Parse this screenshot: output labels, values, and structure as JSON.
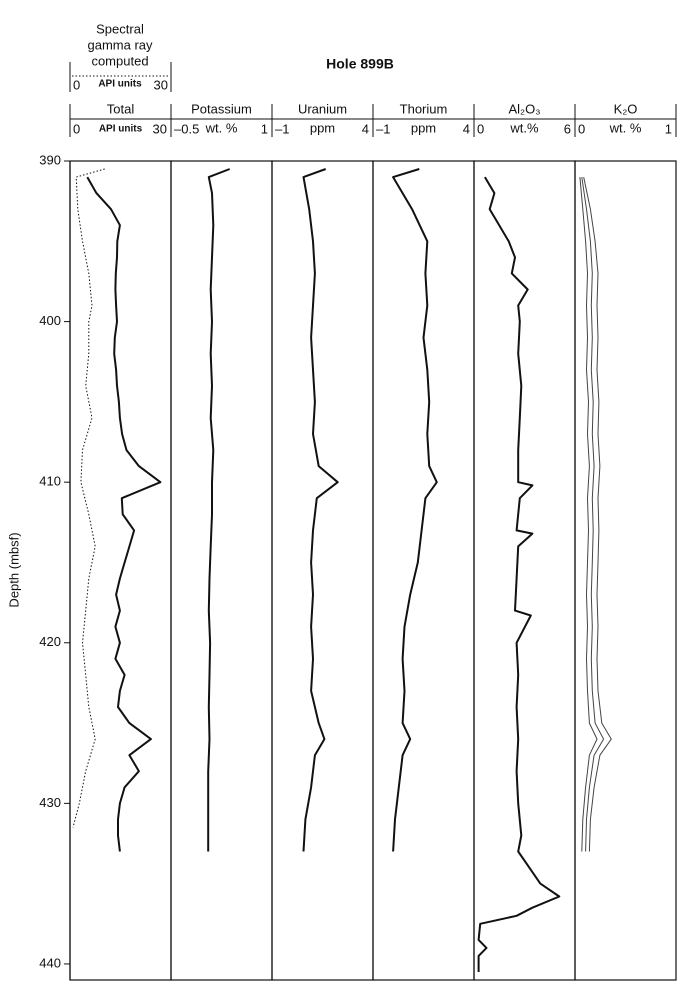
{
  "title": "Hole 899B",
  "chart_data": [
    {
      "type": "line",
      "title": "Total",
      "xlabel": "API units",
      "xlim": [
        0,
        30
      ],
      "xticks": [
        0,
        30
      ],
      "ylabel": "Depth (mbsf)",
      "ylim": [
        390,
        441
      ],
      "yticks": [
        390,
        400,
        410,
        420,
        430,
        440
      ],
      "computed_title": [
        "Spectral",
        "gamma ray",
        "computed"
      ],
      "computed_xlabel": "API units",
      "computed_xticks": [
        0,
        30
      ],
      "series": [
        {
          "color": "#111",
          "style": "solid",
          "depth": [
            391,
            392,
            393,
            394,
            395,
            396,
            397,
            398,
            399,
            400,
            401,
            402,
            403,
            404,
            405,
            406,
            407,
            408,
            409,
            410,
            411,
            412,
            413,
            414,
            415,
            416,
            417,
            418,
            419,
            420,
            421,
            422,
            423,
            424,
            425,
            426,
            427,
            428,
            429,
            430,
            431,
            432,
            433
          ],
          "values": [
            4.5,
            7.4,
            12,
            14.8,
            14,
            13.9,
            13.5,
            13.4,
            13.6,
            13.9,
            13.2,
            13,
            13.6,
            13.9,
            14.5,
            14.8,
            15.5,
            16.9,
            20.8,
            27.6,
            15.4,
            15.7,
            19.3,
            17.8,
            16.3,
            14.8,
            13.6,
            14.8,
            13.4,
            14.8,
            13.4,
            16.3,
            14.8,
            14.2,
            17.8,
            24.6,
            17.8,
            20.8,
            16.3,
            14.8,
            14.2,
            14.2,
            14.8
          ]
        },
        {
          "color": "#111",
          "style": "dotted",
          "depth": [
            390.5,
            391,
            393,
            395,
            397,
            399,
            400,
            402,
            404,
            406,
            408,
            410,
            412,
            414,
            416,
            418,
            420,
            422,
            424,
            426,
            428,
            430,
            431.5
          ],
          "values": [
            10,
            1,
            1.5,
            3,
            5,
            6,
            5,
            5,
            4,
            6,
            3,
            2.5,
            5,
            7,
            5,
            4,
            3,
            4,
            5,
            7,
            4,
            2,
            0
          ]
        }
      ]
    },
    {
      "type": "line",
      "title": "Potassium",
      "xlabel": "wt. %",
      "xlim": [
        -0.5,
        1
      ],
      "xticks": [
        {
          "value": -0.5,
          "label": "–0.5"
        },
        1
      ],
      "series": [
        {
          "color": "#111",
          "style": "solid",
          "depth": [
            390.5,
            391,
            392,
            394,
            396,
            398,
            400,
            402,
            404,
            406,
            408,
            410,
            412,
            414,
            416,
            418,
            420,
            422,
            424,
            426,
            428,
            430,
            432,
            433
          ],
          "values": [
            0.38,
            0.05,
            0.1,
            0.12,
            0.1,
            0.08,
            0.1,
            0.08,
            0.1,
            0.08,
            0.12,
            0.1,
            0.1,
            0.08,
            0.06,
            0.05,
            0.07,
            0.06,
            0.05,
            0.06,
            0.04,
            0.04,
            0.04,
            0.04
          ]
        }
      ]
    },
    {
      "type": "line",
      "title": "Uranium",
      "xlabel": "ppm",
      "xlim": [
        -1,
        4
      ],
      "xticks": [
        {
          "value": -1,
          "label": "–1"
        },
        4
      ],
      "series": [
        {
          "color": "#111",
          "style": "solid",
          "depth": [
            390.5,
            391,
            393,
            395,
            397,
            399,
            401,
            403,
            405,
            407,
            409,
            410,
            411,
            413,
            415,
            417,
            419,
            421,
            423,
            425,
            426,
            427,
            429,
            431,
            433
          ],
          "values": [
            1.67,
            0.5,
            0.8,
            1.0,
            1.1,
            1.0,
            0.9,
            1.0,
            1.1,
            1.0,
            1.3,
            2.3,
            1.2,
            1.0,
            0.9,
            1.0,
            0.9,
            1.0,
            0.9,
            1.3,
            1.6,
            1.1,
            0.9,
            0.6,
            0.5
          ]
        }
      ]
    },
    {
      "type": "line",
      "title": "Thorium",
      "xlabel": "ppm",
      "xlim": [
        -1,
        4
      ],
      "xticks": [
        {
          "value": -1,
          "label": "–1"
        },
        4
      ],
      "series": [
        {
          "color": "#111",
          "style": "solid",
          "depth": [
            390.5,
            391,
            393,
            395,
            397,
            399,
            401,
            403,
            405,
            407,
            409,
            410,
            411,
            413,
            415,
            417,
            419,
            421,
            423,
            425,
            426,
            427,
            429,
            431,
            433
          ],
          "values": [
            1.28,
            -0.1,
            0.9,
            1.7,
            1.6,
            1.7,
            1.5,
            1.7,
            1.8,
            1.7,
            1.8,
            2.2,
            1.6,
            1.4,
            1.2,
            0.8,
            0.5,
            0.4,
            0.5,
            0.4,
            0.8,
            0.4,
            0.2,
            0,
            -0.1
          ]
        }
      ]
    },
    {
      "type": "line",
      "title": "Al₂O₃",
      "xlabel": "wt.%",
      "xlim": [
        0,
        6
      ],
      "xticks": [
        0,
        6
      ],
      "series": [
        {
          "color": "#111",
          "style": "solid",
          "depth": [
            391,
            392,
            393,
            394,
            395,
            396,
            397,
            398,
            399,
            400,
            402,
            404,
            406,
            408,
            410,
            410.2,
            411,
            413,
            413.2,
            414,
            416,
            418,
            418.3,
            420,
            422,
            424,
            426,
            428,
            430,
            432,
            433,
            434,
            435,
            435.8,
            436.5,
            437,
            437.5,
            438.5,
            439,
            439.5,
            440.5
          ],
          "values": [
            0.5,
            1.1,
            0.8,
            1.4,
            2.0,
            2.4,
            2.2,
            3.2,
            2.6,
            2.7,
            2.6,
            2.8,
            2.7,
            2.6,
            2.6,
            3.5,
            2.7,
            2.5,
            3.5,
            2.6,
            2.5,
            2.4,
            3.4,
            2.5,
            2.6,
            2.5,
            2.6,
            2.5,
            2.6,
            2.8,
            2.6,
            3.3,
            4.0,
            5.2,
            3.5,
            2.5,
            0.2,
            0.1,
            0.6,
            0.1,
            0.1
          ]
        }
      ]
    },
    {
      "type": "line",
      "title": "K₂O",
      "xlabel": "wt. %",
      "xlim": [
        0,
        1
      ],
      "xticks": [
        0,
        1
      ],
      "series": [
        {
          "color": "#444",
          "style": "thin",
          "depth": [
            391,
            393,
            395,
            397,
            399,
            401,
            403,
            405,
            407,
            409,
            411,
            413,
            415,
            417,
            419,
            421,
            423,
            425,
            426,
            427,
            429,
            431,
            433
          ],
          "values": [
            0.02,
            0.05,
            0.08,
            0.1,
            0.09,
            0.1,
            0.09,
            0.11,
            0.1,
            0.12,
            0.1,
            0.11,
            0.1,
            0.09,
            0.1,
            0.09,
            0.1,
            0.12,
            0.2,
            0.12,
            0.08,
            0.05,
            0.04
          ]
        },
        {
          "color": "#444",
          "style": "thin",
          "depth": [
            391,
            393,
            395,
            397,
            399,
            401,
            403,
            405,
            407,
            409,
            411,
            413,
            415,
            417,
            419,
            421,
            423,
            425,
            426,
            427,
            429,
            431,
            433
          ],
          "values": [
            0.04,
            0.09,
            0.13,
            0.15,
            0.14,
            0.15,
            0.14,
            0.16,
            0.15,
            0.17,
            0.15,
            0.16,
            0.15,
            0.14,
            0.15,
            0.14,
            0.15,
            0.18,
            0.27,
            0.17,
            0.12,
            0.09,
            0.08
          ]
        },
        {
          "color": "#444",
          "style": "thin",
          "depth": [
            391,
            393,
            395,
            397,
            399,
            401,
            403,
            405,
            407,
            409,
            411,
            413,
            415,
            417,
            419,
            421,
            423,
            425,
            426,
            427,
            429,
            431,
            433
          ],
          "values": [
            0.06,
            0.13,
            0.18,
            0.21,
            0.2,
            0.21,
            0.2,
            0.22,
            0.21,
            0.23,
            0.21,
            0.22,
            0.21,
            0.2,
            0.21,
            0.2,
            0.21,
            0.25,
            0.35,
            0.23,
            0.17,
            0.13,
            0.12
          ]
        }
      ]
    }
  ]
}
